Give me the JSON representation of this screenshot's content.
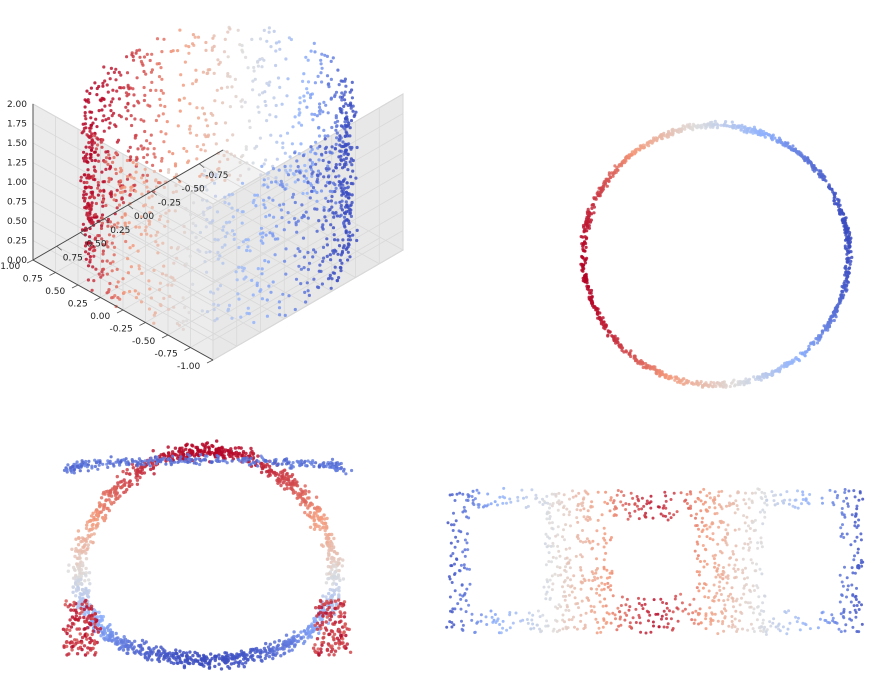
{
  "colors": {
    "high": "#3b4cc0",
    "mid": "#dddddd",
    "low": "#b40426",
    "pane": "#f2f2f2",
    "grid": "#d9d9d9"
  },
  "chart_data": [
    {
      "type": "scatter",
      "projection": "3d",
      "title": "",
      "colormap": "coolwarm",
      "z_ticks": [
        "0.00",
        "0.25",
        "0.50",
        "0.75",
        "1.00",
        "1.25",
        "1.50",
        "1.75",
        "2.00"
      ],
      "y_ticks": [
        "-1.00",
        "-0.75",
        "-0.50",
        "-0.25",
        "0.00",
        "0.25",
        "0.50",
        "0.75",
        "1.00"
      ],
      "x_ticks": [
        "-0.75",
        "-0.50",
        "-0.25",
        "0.00",
        "0.25",
        "0.50",
        "0.75"
      ],
      "xlim": [
        -1,
        1
      ],
      "ylim": [
        -1,
        1
      ],
      "zlim": [
        0,
        2
      ],
      "grid": true,
      "shape": "cylinder",
      "points": 2000
    },
    {
      "type": "scatter",
      "title": "",
      "colormap": "coolwarm",
      "shape": "ring",
      "points": 2000,
      "axes": "off"
    },
    {
      "type": "scatter",
      "title": "",
      "colormap": "coolwarm",
      "shape": "horseshoe",
      "points": 2000,
      "axes": "off"
    },
    {
      "type": "scatter",
      "title": "",
      "colormap": "coolwarm",
      "shape": "figure-eight-band",
      "points": 2000,
      "axes": "off"
    }
  ]
}
